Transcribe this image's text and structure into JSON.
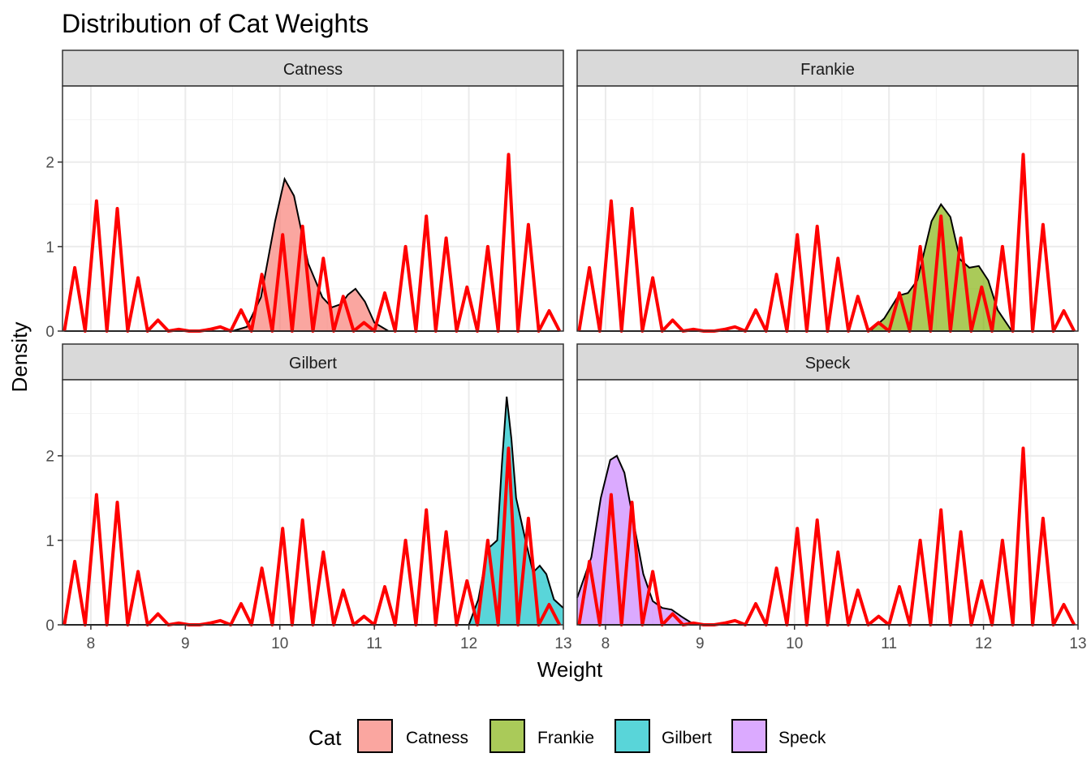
{
  "chart_data": {
    "type": "area",
    "title": "Distribution of Cat Weights",
    "xlabel": "Weight",
    "ylabel": "Density",
    "xlim": [
      7.7,
      13.0
    ],
    "ylim": [
      0,
      2.9
    ],
    "x_ticks": [
      8,
      9,
      10,
      11,
      12,
      13
    ],
    "y_ticks": [
      0,
      1,
      2
    ],
    "grid": true,
    "legend": {
      "title": "Cat",
      "position": "bottom"
    },
    "facets": [
      {
        "name": "Catness",
        "fill": "#F8766D",
        "density": [
          [
            9.5,
            0
          ],
          [
            9.65,
            0.05
          ],
          [
            9.8,
            0.4
          ],
          [
            9.95,
            1.3
          ],
          [
            10.05,
            1.8
          ],
          [
            10.15,
            1.6
          ],
          [
            10.3,
            0.8
          ],
          [
            10.45,
            0.4
          ],
          [
            10.55,
            0.28
          ],
          [
            10.65,
            0.32
          ],
          [
            10.72,
            0.43
          ],
          [
            10.8,
            0.5
          ],
          [
            10.9,
            0.35
          ],
          [
            11.0,
            0.1
          ],
          [
            11.15,
            0
          ]
        ]
      },
      {
        "name": "Frankie",
        "fill": "#7CAE00",
        "density": [
          [
            10.8,
            0
          ],
          [
            10.95,
            0.15
          ],
          [
            11.1,
            0.42
          ],
          [
            11.2,
            0.45
          ],
          [
            11.3,
            0.6
          ],
          [
            11.45,
            1.3
          ],
          [
            11.55,
            1.5
          ],
          [
            11.65,
            1.35
          ],
          [
            11.75,
            0.85
          ],
          [
            11.85,
            0.75
          ],
          [
            11.95,
            0.77
          ],
          [
            12.05,
            0.6
          ],
          [
            12.15,
            0.25
          ],
          [
            12.3,
            0
          ]
        ]
      },
      {
        "name": "Gilbert",
        "fill": "#00BFC4",
        "density": [
          [
            12.0,
            0
          ],
          [
            12.1,
            0.3
          ],
          [
            12.2,
            0.9
          ],
          [
            12.3,
            1.0
          ],
          [
            12.35,
            1.9
          ],
          [
            12.4,
            2.7
          ],
          [
            12.45,
            2.2
          ],
          [
            12.5,
            1.5
          ],
          [
            12.6,
            1.0
          ],
          [
            12.68,
            0.62
          ],
          [
            12.75,
            0.7
          ],
          [
            12.82,
            0.6
          ],
          [
            12.9,
            0.3
          ],
          [
            13.0,
            0.2
          ]
        ]
      },
      {
        "name": "Speck",
        "fill": "#C77CFF",
        "density": [
          [
            7.7,
            0.32
          ],
          [
            7.85,
            0.8
          ],
          [
            7.95,
            1.5
          ],
          [
            8.05,
            1.95
          ],
          [
            8.12,
            2.0
          ],
          [
            8.2,
            1.8
          ],
          [
            8.3,
            1.2
          ],
          [
            8.4,
            0.6
          ],
          [
            8.5,
            0.28
          ],
          [
            8.6,
            0.2
          ],
          [
            8.7,
            0.18
          ],
          [
            8.8,
            0.1
          ],
          [
            8.9,
            0.03
          ],
          [
            9.0,
            0
          ]
        ]
      }
    ],
    "spike_series": {
      "color": "#FF0000",
      "x": [
        7.72,
        7.83,
        7.94,
        8.06,
        8.17,
        8.28,
        8.39,
        8.5,
        8.6,
        8.71,
        8.82,
        8.93,
        9.04,
        9.15,
        9.26,
        9.37,
        9.48,
        9.59,
        9.7,
        9.81,
        9.92,
        10.03,
        10.13,
        10.24,
        10.35,
        10.46,
        10.57,
        10.67,
        10.78,
        10.89,
        11.0,
        11.11,
        11.22,
        11.33,
        11.44,
        11.55,
        11.65,
        11.76,
        11.87,
        11.98,
        12.09,
        12.2,
        12.31,
        12.42,
        12.52,
        12.63,
        12.74,
        12.85,
        12.96
      ],
      "y": [
        0,
        0.75,
        0,
        1.54,
        0,
        1.45,
        0,
        0.63,
        0,
        0.13,
        0,
        0.02,
        0,
        0,
        0.02,
        0.05,
        0,
        0.25,
        0,
        0.67,
        0,
        1.14,
        0,
        1.24,
        0,
        0.86,
        0,
        0.41,
        0,
        0.1,
        0,
        0.45,
        0,
        1.0,
        0,
        1.36,
        0,
        1.1,
        0,
        0.52,
        0,
        1.0,
        0,
        2.09,
        0,
        1.26,
        0,
        0.24,
        0
      ]
    }
  }
}
